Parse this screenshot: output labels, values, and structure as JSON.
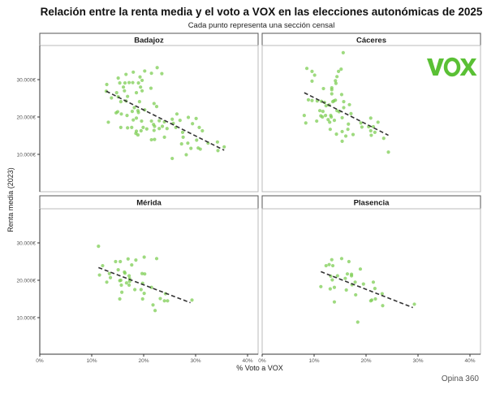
{
  "title": "Relación entre la renta media y el voto a VOX en las elecciones autonómicas de 2025",
  "subtitle": "Cada punto representa una sección censal",
  "caption": "Opina 360",
  "logo_text": "VOX",
  "colors": {
    "points": "#7dce54",
    "trend": "#333333",
    "logo": "#5ac035"
  },
  "chart_data": {
    "type": "scatter",
    "xlabel": "% Voto a VOX",
    "ylabel": "Renta media (2023)",
    "xlim": [
      0,
      42
    ],
    "ylim": [
      0,
      39000
    ],
    "x_ticks": [
      0,
      10,
      20,
      30,
      40
    ],
    "x_tick_labels": [
      "0%",
      "10%",
      "20%",
      "30%",
      "40%"
    ],
    "y_ticks": [
      10000,
      20000,
      30000
    ],
    "y_tick_labels": [
      "10.000€",
      "20.000€",
      "30.000€"
    ],
    "grid": false,
    "trend_style": "dashed",
    "panels": [
      {
        "name": "Badajoz",
        "trend": [
          [
            12.8,
            26900
          ],
          [
            35.5,
            11100
          ]
        ],
        "points": [
          [
            12.9,
            28700
          ],
          [
            12.8,
            26900
          ],
          [
            13.8,
            25100
          ],
          [
            13.2,
            18600
          ],
          [
            15.1,
            30400
          ],
          [
            15.4,
            29100
          ],
          [
            14.8,
            26500
          ],
          [
            15.1,
            25400
          ],
          [
            15.6,
            24100
          ],
          [
            16.6,
            31400
          ],
          [
            16.4,
            29100
          ],
          [
            16.1,
            28000
          ],
          [
            16.3,
            27000
          ],
          [
            16.9,
            25500
          ],
          [
            16.6,
            24300
          ],
          [
            15.0,
            21400
          ],
          [
            14.7,
            21100
          ],
          [
            15.7,
            20800
          ],
          [
            16.8,
            20400
          ],
          [
            15.6,
            17200
          ],
          [
            16.9,
            17100
          ],
          [
            17.7,
            17200
          ],
          [
            17.2,
            29200
          ],
          [
            17.9,
            29200
          ],
          [
            18.0,
            32000
          ],
          [
            19.3,
            30700
          ],
          [
            19.0,
            29100
          ],
          [
            19.7,
            29800
          ],
          [
            19.4,
            28000
          ],
          [
            19.7,
            27000
          ],
          [
            18.6,
            26500
          ],
          [
            19.2,
            24100
          ],
          [
            18.2,
            22500
          ],
          [
            18.9,
            21700
          ],
          [
            17.8,
            21500
          ],
          [
            19.0,
            21200
          ],
          [
            20.2,
            21900
          ],
          [
            18.6,
            19700
          ],
          [
            18.0,
            19200
          ],
          [
            19.6,
            18900
          ],
          [
            19.9,
            17200
          ],
          [
            18.6,
            16200
          ],
          [
            18.9,
            15200
          ],
          [
            18.5,
            15600
          ],
          [
            19.5,
            16300
          ],
          [
            20.6,
            16800
          ],
          [
            20.2,
            32300
          ],
          [
            21.5,
            31700
          ],
          [
            22.6,
            33200
          ],
          [
            23.5,
            31600
          ],
          [
            21.4,
            27700
          ],
          [
            22.0,
            23600
          ],
          [
            22.5,
            22800
          ],
          [
            21.5,
            18900
          ],
          [
            21.9,
            18000
          ],
          [
            22.1,
            17500
          ],
          [
            22.0,
            16400
          ],
          [
            23.0,
            16900
          ],
          [
            23.0,
            19000
          ],
          [
            23.6,
            17500
          ],
          [
            24.0,
            18700
          ],
          [
            24.5,
            16900
          ],
          [
            24.0,
            14600
          ],
          [
            21.5,
            13900
          ],
          [
            22.1,
            14000
          ],
          [
            25.5,
            19400
          ],
          [
            26.4,
            20800
          ],
          [
            25.7,
            18300
          ],
          [
            26.2,
            17200
          ],
          [
            27.0,
            19100
          ],
          [
            27.5,
            15900
          ],
          [
            27.6,
            14600
          ],
          [
            27.3,
            12800
          ],
          [
            28.5,
            13000
          ],
          [
            29.1,
            11600
          ],
          [
            28.6,
            19900
          ],
          [
            29.4,
            18200
          ],
          [
            30.1,
            19600
          ],
          [
            30.2,
            13800
          ],
          [
            30.7,
            17200
          ],
          [
            31.3,
            16300
          ],
          [
            30.5,
            11700
          ],
          [
            30.9,
            11400
          ],
          [
            28.2,
            9900
          ],
          [
            25.5,
            8900
          ],
          [
            32.4,
            13000
          ],
          [
            34.2,
            13300
          ],
          [
            34.3,
            11000
          ],
          [
            35.5,
            12000
          ]
        ]
      },
      {
        "name": "Cáceres",
        "trend": [
          [
            8.1,
            26500
          ],
          [
            24.3,
            15100
          ]
        ],
        "points": [
          [
            15.6,
            37200
          ],
          [
            8.6,
            33000
          ],
          [
            9.6,
            32200
          ],
          [
            10.1,
            31200
          ],
          [
            9.6,
            29600
          ],
          [
            15.2,
            32800
          ],
          [
            14.7,
            32200
          ],
          [
            14.4,
            30800
          ],
          [
            14.1,
            29700
          ],
          [
            14.2,
            29000
          ],
          [
            11.8,
            27600
          ],
          [
            13.4,
            27800
          ],
          [
            13.4,
            27300
          ],
          [
            13.4,
            26200
          ],
          [
            15.3,
            26000
          ],
          [
            8.9,
            24600
          ],
          [
            9.6,
            24400
          ],
          [
            10.6,
            24300
          ],
          [
            11.4,
            24200
          ],
          [
            12.0,
            23900
          ],
          [
            12.3,
            23000
          ],
          [
            12.9,
            23200
          ],
          [
            13.8,
            24300
          ],
          [
            14.1,
            24500
          ],
          [
            13.6,
            24100
          ],
          [
            15.7,
            24100
          ],
          [
            16.8,
            23300
          ],
          [
            15.7,
            22500
          ],
          [
            14.8,
            21400
          ],
          [
            14.4,
            21700
          ],
          [
            8.1,
            20400
          ],
          [
            8.4,
            18400
          ],
          [
            11.1,
            21700
          ],
          [
            11.7,
            21500
          ],
          [
            11.3,
            20300
          ],
          [
            11.6,
            20000
          ],
          [
            12.2,
            20400
          ],
          [
            13.2,
            20400
          ],
          [
            13.3,
            20000
          ],
          [
            12.7,
            19300
          ],
          [
            13.9,
            19100
          ],
          [
            10.5,
            18900
          ],
          [
            13.0,
            18600
          ],
          [
            15.4,
            19800
          ],
          [
            17.1,
            20900
          ],
          [
            16.6,
            18100
          ],
          [
            13.1,
            16700
          ],
          [
            16.5,
            16700
          ],
          [
            14.3,
            15400
          ],
          [
            15.4,
            16100
          ],
          [
            16.1,
            14900
          ],
          [
            17.5,
            15300
          ],
          [
            15.4,
            13500
          ],
          [
            19.0,
            18400
          ],
          [
            19.2,
            17300
          ],
          [
            20.5,
            17400
          ],
          [
            20.9,
            19700
          ],
          [
            21.4,
            17400
          ],
          [
            22.3,
            18600
          ],
          [
            20.9,
            16300
          ],
          [
            21.0,
            15100
          ],
          [
            21.7,
            15900
          ],
          [
            23.4,
            14300
          ],
          [
            24.3,
            10600
          ]
        ]
      },
      {
        "name": "Mérida",
        "trend": [
          [
            11.3,
            23400
          ],
          [
            29.0,
            14000
          ]
        ],
        "points": [
          [
            11.3,
            29100
          ],
          [
            11.5,
            21400
          ],
          [
            12.1,
            23900
          ],
          [
            12.9,
            19500
          ],
          [
            13.4,
            21800
          ],
          [
            13.6,
            20700
          ],
          [
            14.6,
            25000
          ],
          [
            15.1,
            22800
          ],
          [
            15.5,
            25000
          ],
          [
            15.4,
            19900
          ],
          [
            15.6,
            20000
          ],
          [
            15.7,
            18700
          ],
          [
            15.8,
            16800
          ],
          [
            15.4,
            15000
          ],
          [
            16.3,
            22200
          ],
          [
            16.4,
            21900
          ],
          [
            16.7,
            19300
          ],
          [
            17.0,
            25700
          ],
          [
            17.2,
            21200
          ],
          [
            17.3,
            20400
          ],
          [
            17.3,
            19700
          ],
          [
            17.2,
            18700
          ],
          [
            17.7,
            24100
          ],
          [
            18.3,
            17500
          ],
          [
            18.5,
            25400
          ],
          [
            19.5,
            17500
          ],
          [
            19.7,
            21800
          ],
          [
            20.2,
            21700
          ],
          [
            19.8,
            19200
          ],
          [
            19.8,
            15000
          ],
          [
            20.1,
            16500
          ],
          [
            20.1,
            26200
          ],
          [
            21.5,
            18100
          ],
          [
            21.8,
            13400
          ],
          [
            22.2,
            11900
          ],
          [
            22.5,
            25800
          ],
          [
            23.2,
            15100
          ],
          [
            24.2,
            16400
          ],
          [
            24.0,
            14500
          ],
          [
            24.6,
            14500
          ],
          [
            29.3,
            14700
          ]
        ]
      },
      {
        "name": "Plasencia",
        "trend": [
          [
            11.3,
            22300
          ],
          [
            29.0,
            12700
          ]
        ],
        "points": [
          [
            11.3,
            18300
          ],
          [
            12.3,
            23900
          ],
          [
            12.9,
            24200
          ],
          [
            13.4,
            25500
          ],
          [
            13.6,
            23900
          ],
          [
            13.2,
            21100
          ],
          [
            13.5,
            20100
          ],
          [
            13.1,
            17700
          ],
          [
            13.9,
            18100
          ],
          [
            13.9,
            14200
          ],
          [
            14.5,
            21200
          ],
          [
            15.3,
            25800
          ],
          [
            16.0,
            20500
          ],
          [
            16.4,
            21700
          ],
          [
            16.2,
            17400
          ],
          [
            16.7,
            25000
          ],
          [
            17.2,
            21600
          ],
          [
            17.2,
            21200
          ],
          [
            17.3,
            18800
          ],
          [
            17.9,
            19500
          ],
          [
            18.0,
            16100
          ],
          [
            18.9,
            23000
          ],
          [
            19.5,
            19000
          ],
          [
            18.4,
            8800
          ],
          [
            21.4,
            19500
          ],
          [
            21.7,
            17800
          ],
          [
            21.8,
            15000
          ],
          [
            23.1,
            16400
          ],
          [
            21.1,
            14700
          ],
          [
            20.9,
            14500
          ],
          [
            23.2,
            13200
          ],
          [
            29.3,
            13600
          ]
        ]
      }
    ]
  }
}
